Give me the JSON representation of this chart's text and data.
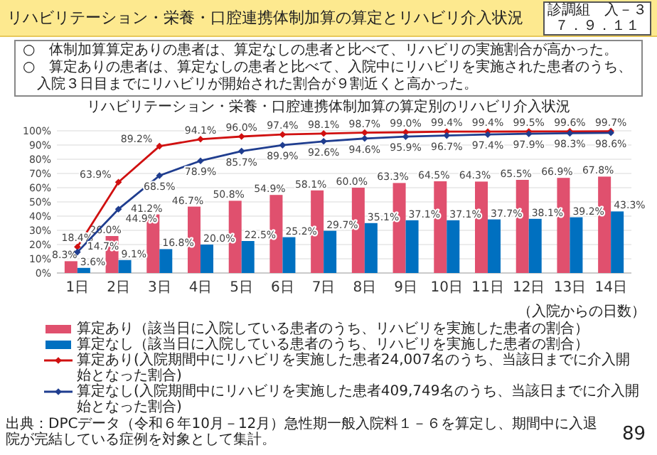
{
  "chart_data": {
    "type": "bar",
    "title": "リハビリテーション・栄養・口腔連携体制加算の算定とリハビリ介入状況",
    "subtitle": "リハビリテーション・栄養・口腔連携体制加算の算定別のリハビリ介入状況",
    "xlabel": "（入院からの日数）",
    "categories": [
      "1日",
      "2日",
      "3日",
      "4日",
      "5日",
      "6日",
      "7日",
      "8日",
      "9日",
      "10日",
      "11日",
      "12日",
      "13日",
      "14日"
    ],
    "ylim": [
      0,
      100
    ],
    "yticks": [
      {
        "value": 0,
        "label": "0%"
      },
      {
        "value": 10,
        "label": "10%"
      },
      {
        "value": 20,
        "label": "20%"
      },
      {
        "value": 30,
        "label": "30%"
      },
      {
        "value": 40,
        "label": "40%"
      },
      {
        "value": 50,
        "label": "50%"
      },
      {
        "value": 60,
        "label": "60%"
      },
      {
        "value": 70,
        "label": "70%"
      },
      {
        "value": 80,
        "label": "80%"
      },
      {
        "value": 90,
        "label": "90%"
      },
      {
        "value": 100,
        "label": "100%"
      }
    ],
    "grid": "y",
    "legend": "bottom",
    "series": [
      {
        "name": "算定あり（該当日に入院している患者のうち、リハビリを実施した患者の割合）",
        "color": "#e0506e",
        "values": [
          8.3,
          26.0,
          41.2,
          46.7,
          50.8,
          54.9,
          58.1,
          60.0,
          63.3,
          64.5,
          64.3,
          65.5,
          66.9,
          67.8
        ],
        "value_labels": [
          "8.3%",
          "26.0%",
          "41.2%",
          "46.7%",
          "50.8%",
          "54.9%",
          "58.1%",
          "60.0%",
          "63.3%",
          "64.5%",
          "64.3%",
          "65.5%",
          "66.9%",
          "67.8%"
        ]
      },
      {
        "name": "算定なし（該当日に入院している患者のうち、リハビリを実施した患者の割合）",
        "color": "#0070c0",
        "values": [
          3.6,
          9.1,
          16.8,
          20.0,
          22.5,
          25.2,
          29.7,
          35.1,
          37.1,
          37.1,
          37.7,
          38.1,
          39.2,
          43.3
        ],
        "value_labels": [
          "3.6%",
          "9.1%",
          "16.8%",
          "20.0%",
          "22.5%",
          "25.2%",
          "29.7%",
          "35.1%",
          "37.1%",
          "37.1%",
          "37.7%",
          "38.1%",
          "39.2%",
          "43.3%"
        ]
      },
      {
        "name": "算定あり(入院期間中にリハビリを実施した患者24,007名のうち、当該日までに介入開始となった割合)",
        "type": "line",
        "color": "#d01010",
        "marker": "diamond",
        "values": [
          18.4,
          63.9,
          89.2,
          94.1,
          96.0,
          97.4,
          98.1,
          98.7,
          99.0,
          99.4,
          99.4,
          99.5,
          99.6,
          99.7
        ],
        "value_labels": [
          "18.4%",
          "63.9%",
          "89.2%",
          "94.1%",
          "96.0%",
          "97.4%",
          "98.1%",
          "98.7%",
          "99.0%",
          "99.4%",
          "99.4%",
          "99.5%",
          "99.6%",
          "99.7%"
        ]
      },
      {
        "name": "算定なし(入院期間中にリハビリを実施した患者409,749名のうち、当該日までに介入開始となった割合)",
        "type": "line",
        "color": "#1f3d8f",
        "marker": "diamond",
        "values": [
          14.7,
          44.9,
          68.5,
          78.9,
          85.7,
          89.9,
          92.6,
          94.6,
          95.9,
          96.7,
          97.4,
          97.9,
          98.3,
          98.6
        ],
        "value_labels": [
          "14.7%",
          "44.9%",
          "68.5%",
          "78.9%",
          "85.7%",
          "89.9%",
          "92.6%",
          "94.6%",
          "95.9%",
          "96.7%",
          "97.4%",
          "97.9%",
          "98.3%",
          "98.6%"
        ]
      }
    ],
    "annotations": [
      "診調組　入－３",
      "７．９．１１",
      "○　体制加算算定ありの患者は、算定なしの患者と比べて、リハビリの実施割合が高かった。",
      "○　算定ありの患者は、算定なしの患者と比べて、入院中にリハビリを実施された患者のうち、入院３日目までにリハビリが開始された割合が９割近くと高かった。",
      "出典：DPCデータ（令和６年10月－12月）急性期一般入院料１－６を算定し、期間中に入退院が完結している症例を対象として集計。",
      "89"
    ]
  }
}
